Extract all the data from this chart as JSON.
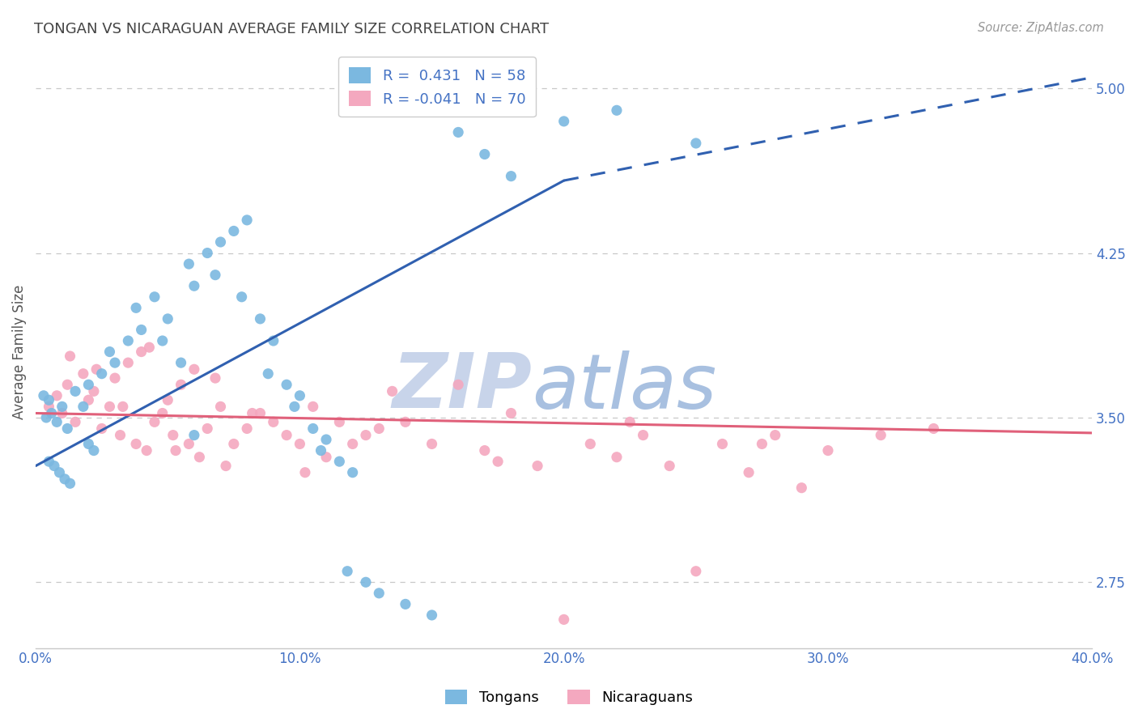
{
  "title": "TONGAN VS NICARAGUAN AVERAGE FAMILY SIZE CORRELATION CHART",
  "source": "Source: ZipAtlas.com",
  "ylabel": "Average Family Size",
  "xlim": [
    0.0,
    40.0
  ],
  "ylim": [
    2.45,
    5.15
  ],
  "yticks": [
    2.75,
    3.5,
    4.25,
    5.0
  ],
  "xticks": [
    0.0,
    10.0,
    20.0,
    30.0,
    40.0
  ],
  "xticklabels": [
    "0.0%",
    "10.0%",
    "20.0%",
    "30.0%",
    "40.0%"
  ],
  "tongan_color": "#7bb8e0",
  "nicaraguan_color": "#f4a8bf",
  "tongan_line_color": "#3060b0",
  "nicaraguan_line_color": "#e0607a",
  "tongan_R": 0.431,
  "tongan_N": 58,
  "nicaraguan_R": -0.041,
  "nicaraguan_N": 70,
  "background_color": "#ffffff",
  "grid_color": "#c8c8c8",
  "title_color": "#444444",
  "axis_label_color": "#555555",
  "tick_color": "#4472c4",
  "watermark_zip_color": "#c5cfe8",
  "watermark_atlas_color": "#a8c4e8",
  "legend_color": "#4472c4",
  "tongan_x": [
    1.2,
    0.4,
    0.6,
    0.8,
    1.0,
    0.3,
    0.5,
    1.5,
    2.0,
    1.8,
    2.5,
    3.0,
    2.8,
    3.5,
    4.0,
    3.8,
    4.5,
    5.0,
    4.8,
    5.5,
    6.0,
    5.8,
    6.5,
    7.0,
    6.8,
    7.5,
    8.0,
    7.8,
    8.5,
    9.0,
    8.8,
    9.5,
    10.0,
    9.8,
    10.5,
    11.0,
    10.8,
    11.5,
    12.0,
    11.8,
    12.5,
    13.0,
    14.0,
    15.0,
    16.0,
    17.0,
    18.0,
    6.0,
    2.0,
    2.2,
    0.5,
    0.7,
    0.9,
    1.1,
    1.3,
    20.0,
    22.0,
    25.0
  ],
  "tongan_y": [
    3.45,
    3.5,
    3.52,
    3.48,
    3.55,
    3.6,
    3.58,
    3.62,
    3.65,
    3.55,
    3.7,
    3.75,
    3.8,
    3.85,
    3.9,
    4.0,
    4.05,
    3.95,
    3.85,
    3.75,
    4.1,
    4.2,
    4.25,
    4.3,
    4.15,
    4.35,
    4.4,
    4.05,
    3.95,
    3.85,
    3.7,
    3.65,
    3.6,
    3.55,
    3.45,
    3.4,
    3.35,
    3.3,
    3.25,
    2.8,
    2.75,
    2.7,
    2.65,
    2.6,
    4.8,
    4.7,
    4.6,
    3.42,
    3.38,
    3.35,
    3.3,
    3.28,
    3.25,
    3.22,
    3.2,
    4.85,
    4.9,
    4.75
  ],
  "nicaraguan_x": [
    0.5,
    0.8,
    1.0,
    1.2,
    1.5,
    1.8,
    2.0,
    2.2,
    2.5,
    2.8,
    3.0,
    3.2,
    3.5,
    3.8,
    4.0,
    4.2,
    4.5,
    4.8,
    5.0,
    5.2,
    5.5,
    5.8,
    6.0,
    6.2,
    6.5,
    7.0,
    7.5,
    8.0,
    8.5,
    9.0,
    9.5,
    10.0,
    10.5,
    11.0,
    11.5,
    12.0,
    12.5,
    13.0,
    14.0,
    15.0,
    16.0,
    17.0,
    18.0,
    19.0,
    20.0,
    21.0,
    22.0,
    23.0,
    24.0,
    25.0,
    26.0,
    27.0,
    28.0,
    29.0,
    30.0,
    32.0,
    34.0,
    1.3,
    2.3,
    3.3,
    6.8,
    8.2,
    10.2,
    13.5,
    17.5,
    22.5,
    27.5,
    4.3,
    5.3,
    7.2
  ],
  "nicaraguan_y": [
    3.55,
    3.6,
    3.52,
    3.65,
    3.48,
    3.7,
    3.58,
    3.62,
    3.45,
    3.55,
    3.68,
    3.42,
    3.75,
    3.38,
    3.8,
    3.35,
    3.48,
    3.52,
    3.58,
    3.42,
    3.65,
    3.38,
    3.72,
    3.32,
    3.45,
    3.55,
    3.38,
    3.45,
    3.52,
    3.48,
    3.42,
    3.38,
    3.55,
    3.32,
    3.48,
    3.38,
    3.42,
    3.45,
    3.48,
    3.38,
    3.65,
    3.35,
    3.52,
    3.28,
    2.58,
    3.38,
    3.32,
    3.42,
    3.28,
    2.8,
    3.38,
    3.25,
    3.42,
    3.18,
    3.35,
    3.42,
    3.45,
    3.78,
    3.72,
    3.55,
    3.68,
    3.52,
    3.25,
    3.62,
    3.3,
    3.48,
    3.38,
    3.82,
    3.35,
    3.28
  ],
  "blue_line_x_start": 0.0,
  "blue_line_y_start": 3.28,
  "blue_line_x_solid_end": 20.0,
  "blue_line_y_solid_end": 4.58,
  "blue_line_x_dash_end": 40.0,
  "blue_line_y_dash_end": 5.05,
  "pink_line_x_start": 0.0,
  "pink_line_y_start": 3.52,
  "pink_line_x_end": 40.0,
  "pink_line_y_end": 3.43
}
